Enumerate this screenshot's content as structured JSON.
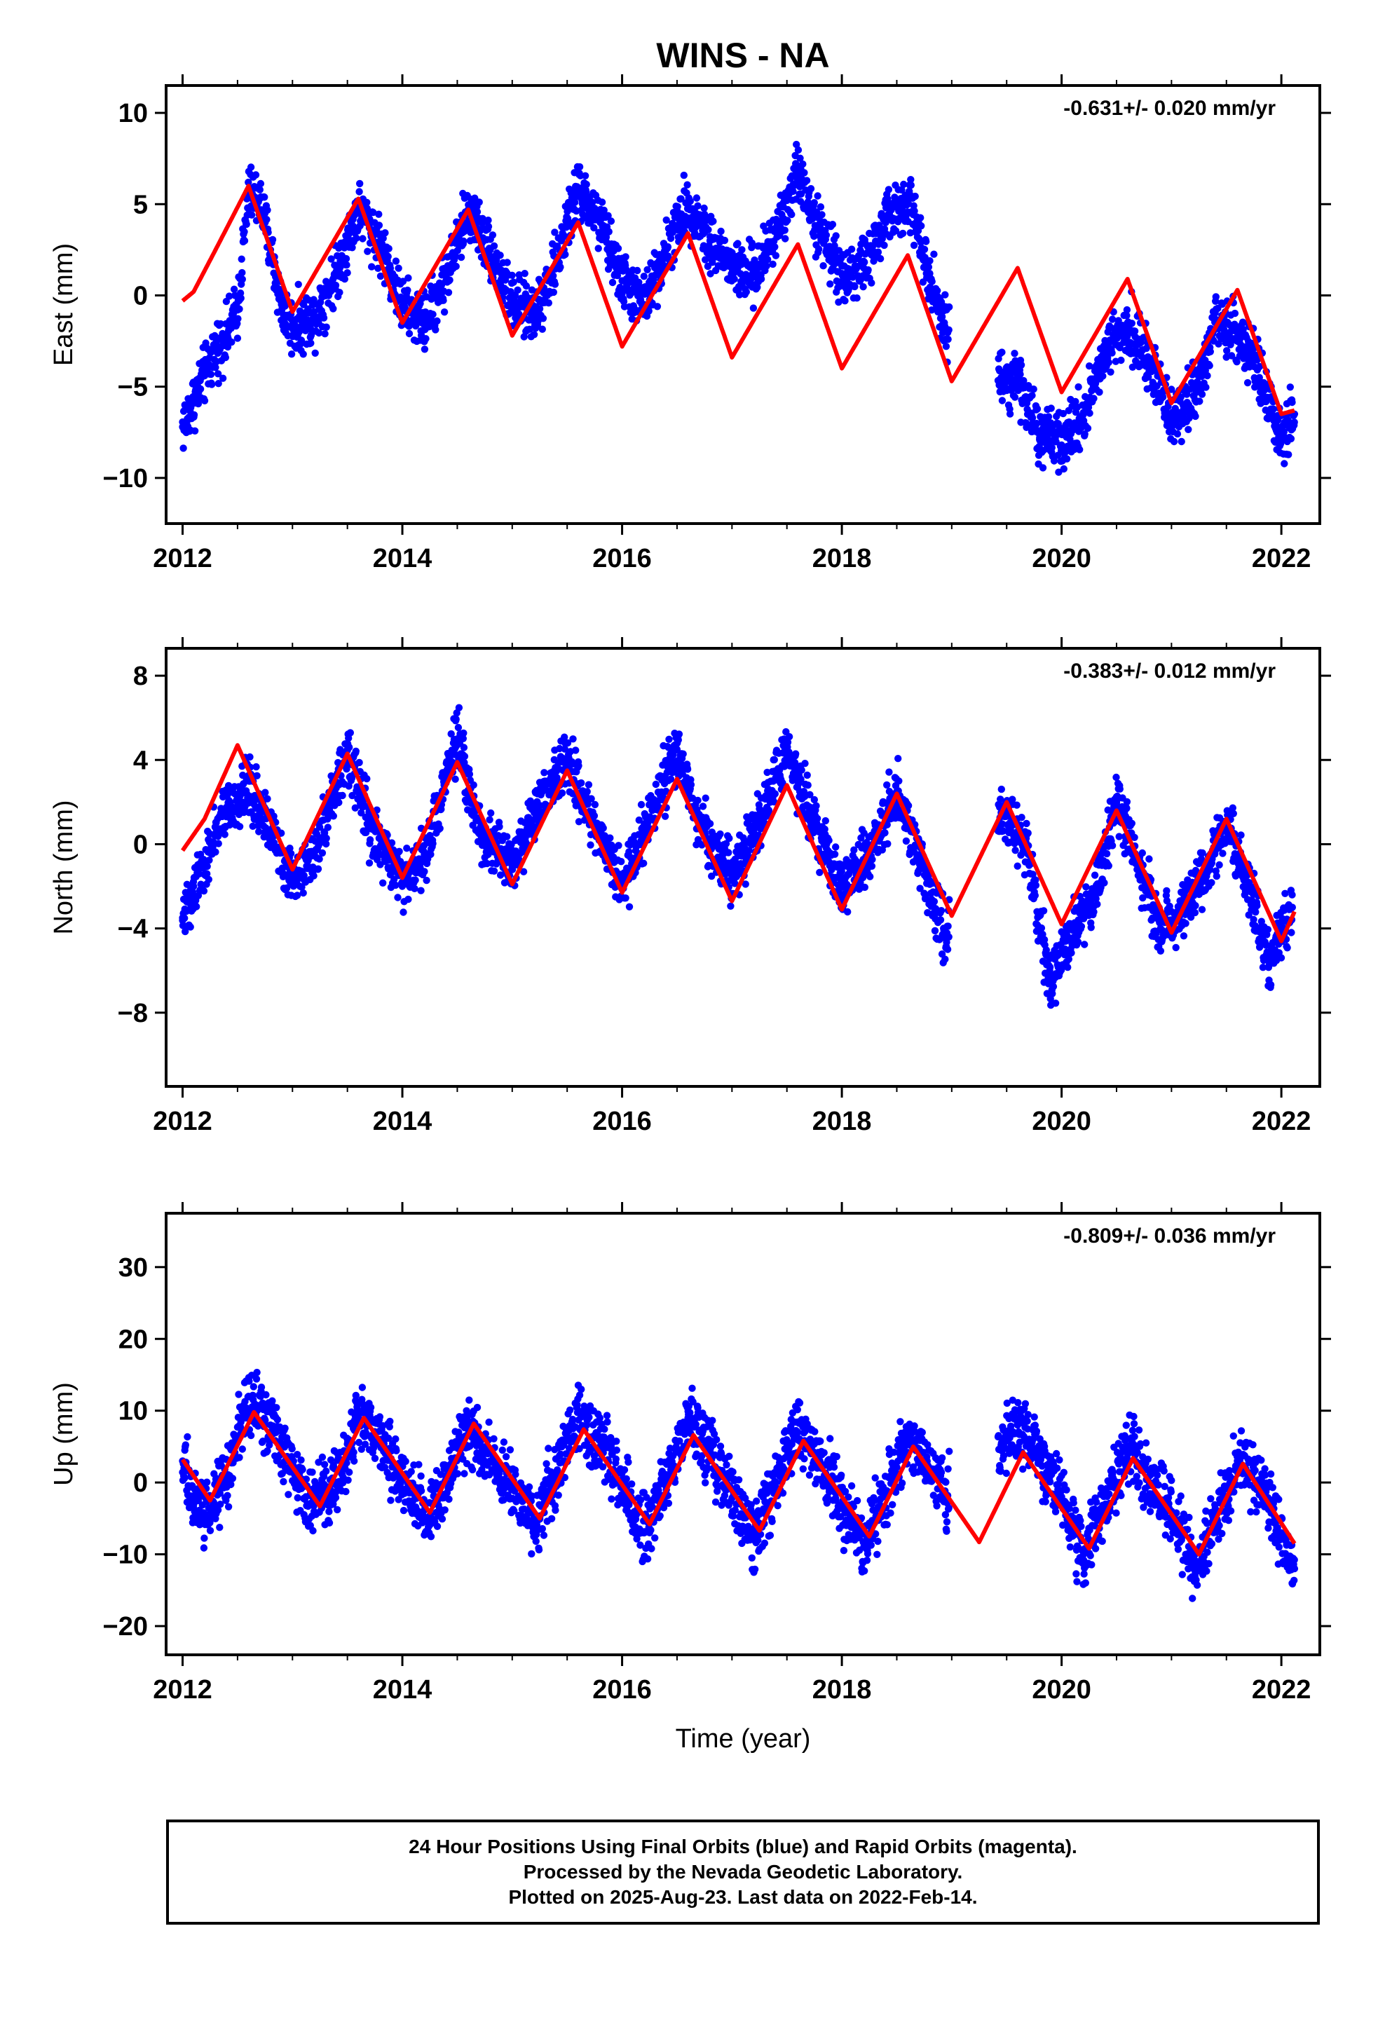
{
  "title": "WINS - NA",
  "colors": {
    "observations": "#0000ff",
    "model": "#ff0000",
    "frame": "#000000"
  },
  "chart_data": [
    {
      "type": "scatter",
      "ylabel": "East (mm)",
      "xlabel": "",
      "xlim": [
        2011.85,
        2022.35
      ],
      "ylim": [
        -12.5,
        11.5
      ],
      "xticks": [
        2012,
        2014,
        2016,
        2018,
        2020,
        2022
      ],
      "xticklabels": [
        "2012",
        "2014",
        "2016",
        "2018",
        "2020",
        "2022"
      ],
      "yticks": [
        -10,
        -5,
        0,
        5,
        10
      ],
      "yticklabels": [
        "−10",
        "−5",
        "0",
        "5",
        "10"
      ],
      "rate_label": "-0.631+/- 0.020 mm/yr",
      "grid": false,
      "series": [
        {
          "kind": "points",
          "x": [
            2012.0,
            2012.1,
            2012.2,
            2012.3,
            2012.4,
            2012.5,
            2012.6,
            2012.7,
            2012.8,
            2012.9,
            2013.0,
            2013.2,
            2013.4,
            2013.6,
            2013.8,
            2014.0,
            2014.2,
            2014.4,
            2014.6,
            2014.8,
            2015.0,
            2015.2,
            2015.4,
            2015.6,
            2015.8,
            2016.0,
            2016.2,
            2016.4,
            2016.6,
            2016.8,
            2017.0,
            2017.2,
            2017.4,
            2017.6,
            2017.8,
            2018.0,
            2018.2,
            2018.4,
            2018.6,
            2018.8,
            2018.95,
            2019.45,
            2019.6,
            2019.8,
            2020.0,
            2020.2,
            2020.4,
            2020.6,
            2020.8,
            2021.0,
            2021.2,
            2021.4,
            2021.6,
            2021.8,
            2022.0,
            2022.12
          ],
          "y": [
            -7.2,
            -5.8,
            -4.4,
            -3.0,
            -2.2,
            -0.8,
            5.5,
            5.3,
            2.5,
            -0.5,
            -1.8,
            -1.2,
            1.2,
            4.8,
            2.8,
            -0.6,
            -1.5,
            1.0,
            4.7,
            2.5,
            -0.5,
            -1.0,
            1.8,
            5.8,
            4.0,
            0.8,
            -0.5,
            2.5,
            5.0,
            3.0,
            1.5,
            1.0,
            3.5,
            6.8,
            3.5,
            1.2,
            1.5,
            4.0,
            5.5,
            1.2,
            -2.0,
            -4.5,
            -4.5,
            -7.8,
            -8.2,
            -6.5,
            -3.0,
            -1.5,
            -3.8,
            -6.8,
            -5.5,
            -1.5,
            -2.0,
            -4.5,
            -8.0,
            -6.5
          ]
        },
        {
          "kind": "model",
          "x": [
            2012.0,
            2012.1,
            2012.3,
            2012.6,
            2013.0,
            2013.6,
            2014.0,
            2014.6,
            2015.0,
            2015.6,
            2016.0,
            2016.6,
            2017.0,
            2017.6,
            2018.0,
            2018.6,
            2019.0,
            2019.6,
            2020.0,
            2020.6,
            2021.0,
            2021.6,
            2022.0,
            2022.12
          ],
          "y": [
            -0.3,
            0.2,
            2.5,
            6.0,
            -0.9,
            5.3,
            -1.5,
            4.7,
            -2.2,
            4.0,
            -2.8,
            3.4,
            -3.4,
            2.8,
            -4.0,
            2.2,
            -4.7,
            1.5,
            -5.3,
            0.9,
            -5.9,
            0.3,
            -6.5,
            -6.3
          ]
        }
      ]
    },
    {
      "type": "scatter",
      "ylabel": "North (mm)",
      "xlabel": "",
      "xlim": [
        2011.85,
        2022.35
      ],
      "ylim": [
        -11.5,
        9.3
      ],
      "xticks": [
        2012,
        2014,
        2016,
        2018,
        2020,
        2022
      ],
      "xticklabels": [
        "2012",
        "2014",
        "2016",
        "2018",
        "2020",
        "2022"
      ],
      "yticks": [
        -8,
        -4,
        0,
        4,
        8
      ],
      "yticklabels": [
        "−8",
        "−4",
        "0",
        "4",
        "8"
      ],
      "rate_label": "-0.383+/- 0.012 mm/yr",
      "grid": false,
      "series": [
        {
          "kind": "points",
          "x": [
            2012.0,
            2012.1,
            2012.2,
            2012.3,
            2012.4,
            2012.5,
            2012.6,
            2012.8,
            2013.0,
            2013.2,
            2013.5,
            2013.7,
            2014.0,
            2014.2,
            2014.5,
            2014.7,
            2015.0,
            2015.2,
            2015.5,
            2015.7,
            2016.0,
            2016.2,
            2016.5,
            2016.7,
            2017.0,
            2017.2,
            2017.5,
            2017.7,
            2018.0,
            2018.2,
            2018.5,
            2018.7,
            2018.95,
            2019.45,
            2019.7,
            2019.9,
            2020.1,
            2020.3,
            2020.5,
            2020.7,
            2020.9,
            2021.1,
            2021.3,
            2021.5,
            2021.7,
            2021.9,
            2022.1
          ],
          "y": [
            -3.5,
            -2.0,
            -1.0,
            0.5,
            1.5,
            2.0,
            3.0,
            0.5,
            -1.5,
            -0.5,
            4.5,
            1.0,
            -1.8,
            -0.5,
            5.0,
            0.5,
            -1.0,
            1.5,
            4.0,
            1.5,
            -2.0,
            0.5,
            4.5,
            1.0,
            -1.5,
            0.5,
            4.5,
            1.5,
            -2.0,
            -1.0,
            2.5,
            -0.5,
            -4.5,
            1.5,
            -0.5,
            -6.5,
            -4.0,
            -2.5,
            2.0,
            -1.0,
            -4.0,
            -3.0,
            -1.5,
            1.0,
            -2.0,
            -5.5,
            -3.0
          ]
        },
        {
          "kind": "model",
          "x": [
            2012.0,
            2012.2,
            2012.5,
            2013.0,
            2013.5,
            2014.0,
            2014.5,
            2015.0,
            2015.5,
            2016.0,
            2016.5,
            2017.0,
            2017.5,
            2018.0,
            2018.5,
            2019.0,
            2019.5,
            2020.0,
            2020.5,
            2021.0,
            2021.5,
            2022.0,
            2022.12
          ],
          "y": [
            -0.3,
            1.2,
            4.7,
            -1.2,
            4.3,
            -1.6,
            3.9,
            -1.9,
            3.5,
            -2.3,
            3.1,
            -2.7,
            2.8,
            -3.1,
            2.4,
            -3.4,
            2.0,
            -3.8,
            1.6,
            -4.2,
            1.2,
            -4.6,
            -3.2
          ]
        }
      ]
    },
    {
      "type": "scatter",
      "ylabel": "Up (mm)",
      "xlabel": "Time (year)",
      "xlim": [
        2011.85,
        2022.35
      ],
      "ylim": [
        -24,
        37.5
      ],
      "xticks": [
        2012,
        2014,
        2016,
        2018,
        2020,
        2022
      ],
      "xticklabels": [
        "2012",
        "2014",
        "2016",
        "2018",
        "2020",
        "2022"
      ],
      "yticks": [
        -20,
        -10,
        0,
        10,
        20,
        30
      ],
      "yticklabels": [
        "−20",
        "−10",
        "0",
        "10",
        "20",
        "30"
      ],
      "rate_label": "-0.809+/- 0.036 mm/yr",
      "grid": false,
      "series": [
        {
          "kind": "points",
          "x": [
            2012.0,
            2012.1,
            2012.2,
            2012.4,
            2012.6,
            2012.8,
            2013.0,
            2013.2,
            2013.4,
            2013.6,
            2013.8,
            2014.0,
            2014.2,
            2014.4,
            2014.6,
            2014.8,
            2015.0,
            2015.2,
            2015.4,
            2015.6,
            2015.8,
            2016.0,
            2016.2,
            2016.4,
            2016.6,
            2016.8,
            2017.0,
            2017.2,
            2017.4,
            2017.6,
            2017.8,
            2018.0,
            2018.2,
            2018.4,
            2018.6,
            2018.8,
            2018.95,
            2019.45,
            2019.6,
            2019.8,
            2020.0,
            2020.2,
            2020.4,
            2020.6,
            2020.8,
            2021.0,
            2021.2,
            2021.4,
            2021.6,
            2021.8,
            2022.0,
            2022.12
          ],
          "y": [
            3.0,
            -2.0,
            -5.0,
            1.0,
            12.0,
            8.0,
            2.0,
            -3.0,
            0.0,
            10.0,
            6.0,
            1.0,
            -5.0,
            0.0,
            8.0,
            3.0,
            -1.0,
            -6.0,
            1.0,
            10.0,
            5.0,
            0.0,
            -7.0,
            0.0,
            9.0,
            4.0,
            -1.0,
            -8.0,
            0.0,
            7.0,
            3.0,
            -3.0,
            -9.0,
            -2.0,
            6.0,
            2.0,
            -2.0,
            5.0,
            8.0,
            4.0,
            -2.0,
            -10.0,
            -3.0,
            5.0,
            0.0,
            -4.0,
            -12.0,
            -6.0,
            3.0,
            0.0,
            -7.0,
            -12.0
          ]
        },
        {
          "kind": "model",
          "x": [
            2012.0,
            2012.25,
            2012.65,
            2013.25,
            2013.65,
            2014.25,
            2014.65,
            2015.25,
            2015.65,
            2016.25,
            2016.65,
            2017.25,
            2017.65,
            2018.25,
            2018.65,
            2019.25,
            2019.65,
            2020.25,
            2020.65,
            2021.25,
            2021.65,
            2022.12
          ],
          "y": [
            3.2,
            -2.5,
            9.8,
            -3.3,
            9.0,
            -4.2,
            8.2,
            -5.0,
            7.4,
            -5.8,
            6.6,
            -6.7,
            5.8,
            -7.5,
            5.0,
            -8.3,
            4.2,
            -9.2,
            3.4,
            -10.0,
            2.6,
            -8.5
          ]
        }
      ]
    }
  ],
  "footer": {
    "line1": "24 Hour Positions Using Final Orbits (blue) and Rapid Orbits (magenta).",
    "line2": "Processed by the Nevada Geodetic Laboratory.",
    "line3": "Plotted on 2025-Aug-23. Last data on 2022-Feb-14."
  }
}
